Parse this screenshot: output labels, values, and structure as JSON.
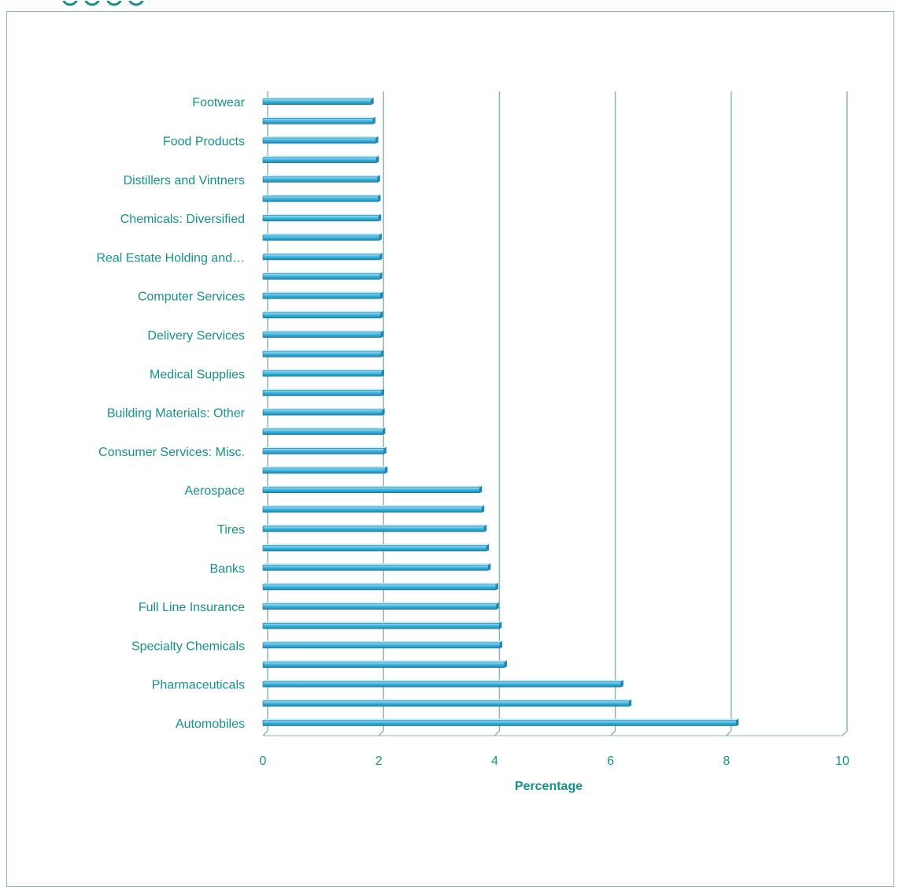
{
  "chart_data": {
    "type": "bar",
    "orientation": "horizontal",
    "title": "",
    "xlabel": "Percentage",
    "ylabel": "",
    "xlim": [
      0,
      10
    ],
    "x_ticks": [
      "0",
      "2",
      "4",
      "6",
      "8",
      "10"
    ],
    "grid": true,
    "legend": "none",
    "bar_color": "#3db6e0",
    "text_color": "#16918a",
    "categories": [
      "Automobiles",
      "",
      "Pharmaceuticals",
      "",
      "Specialty Chemicals",
      "",
      "Full Line Insurance",
      "",
      "Banks",
      "",
      "Tires",
      "",
      "Aerospace",
      "",
      "Consumer Services: Misc.",
      "",
      "Building Materials: Other",
      "",
      "Medical Supplies",
      "",
      "Delivery Services",
      "",
      "Computer Services",
      "",
      "Real Estate Holding and…",
      "",
      "Chemicals: Diversified",
      "",
      "Distillers and Vintners",
      "",
      "Food Products",
      "",
      "Footwear"
    ],
    "values": [
      8.17,
      6.32,
      6.18,
      4.17,
      4.09,
      4.08,
      4.03,
      4.02,
      3.89,
      3.86,
      3.82,
      3.78,
      3.74,
      2.11,
      2.09,
      2.07,
      2.06,
      2.05,
      2.05,
      2.04,
      2.04,
      2.03,
      2.03,
      2.02,
      2.02,
      2.01,
      2.0,
      1.99,
      1.98,
      1.96,
      1.95,
      1.9,
      1.87
    ]
  }
}
